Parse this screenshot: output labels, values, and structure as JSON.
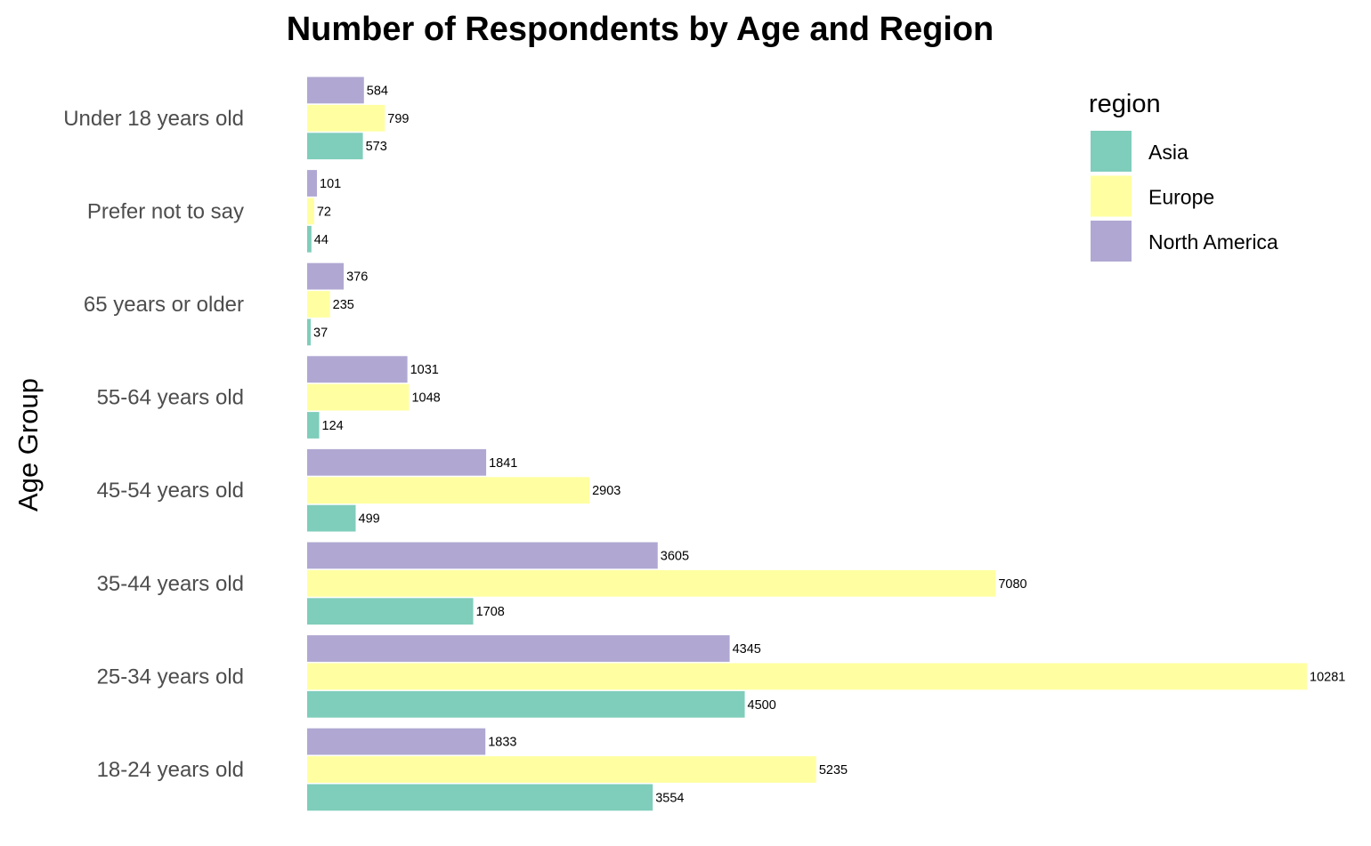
{
  "chart_data": {
    "type": "bar",
    "orientation": "horizontal",
    "title": "Number of Respondents by Age and Region",
    "ylabel": "Age Group",
    "xlabel": "",
    "categories": [
      "18-24 years old",
      "25-34 years old",
      "35-44 years old",
      "45-54 years old",
      "55-64 years old",
      "65 years or older",
      "Prefer not to say",
      "Under 18 years old"
    ],
    "series": [
      {
        "name": "Asia",
        "color": "#7fcdbb",
        "values": [
          3554,
          4500,
          1708,
          499,
          124,
          37,
          44,
          573
        ]
      },
      {
        "name": "Europe",
        "color": "#ffffa1",
        "values": [
          5235,
          10281,
          7080,
          2903,
          1048,
          235,
          72,
          799
        ]
      },
      {
        "name": "North America",
        "color": "#b0a8d2",
        "values": [
          1833,
          4345,
          3605,
          1841,
          1031,
          376,
          101,
          584
        ]
      }
    ],
    "xlim": [
      0,
      10281
    ],
    "grid": false,
    "x_axis_visible": false,
    "legend": {
      "title": "region",
      "placement": "top-right"
    }
  }
}
